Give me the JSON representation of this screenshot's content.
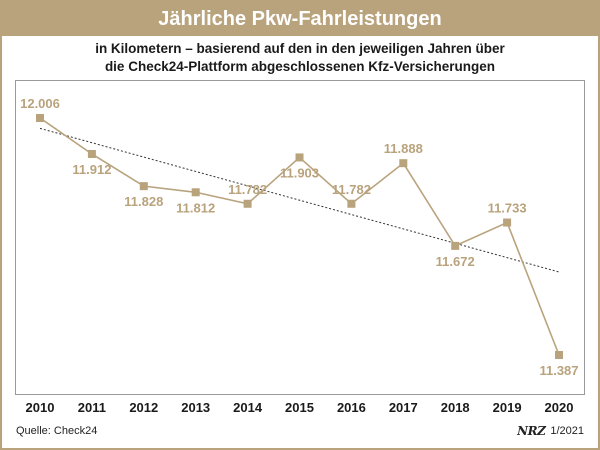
{
  "header": {
    "title": "Jährliche Pkw-Fahrleistungen",
    "subtitle_line1": "in Kilometern – basierend auf den in den jeweiligen Jahren über",
    "subtitle_line2": "die Check24-Plattform abgeschlossenen Kfz-Versicherungen"
  },
  "footer": {
    "source": "Quelle: Check24",
    "logo": "NRZ",
    "date": "1/2021"
  },
  "colors": {
    "accent": "#b9a37d",
    "trend": "#333333",
    "axis_text": "#1a1a1a"
  },
  "chart_data": {
    "type": "line",
    "title": "Jährliche Pkw-Fahrleistungen",
    "x": [
      "2010",
      "2011",
      "2012",
      "2013",
      "2014",
      "2015",
      "2016",
      "2017",
      "2018",
      "2019",
      "2020"
    ],
    "series": [
      {
        "values": [
          12006,
          11912,
          11828,
          11812,
          11782,
          11903,
          11782,
          11888,
          11672,
          11733,
          11387
        ],
        "labels": [
          "12.006",
          "11.912",
          "11.828",
          "11.812",
          "11.782",
          "11.903",
          "11.782",
          "11.888",
          "11.672",
          "11.733",
          "11.387"
        ]
      }
    ],
    "trendline": {
      "style": "dotted",
      "linear": true
    },
    "grid": false,
    "legend": "none",
    "xlabel": "",
    "ylabel": ""
  }
}
